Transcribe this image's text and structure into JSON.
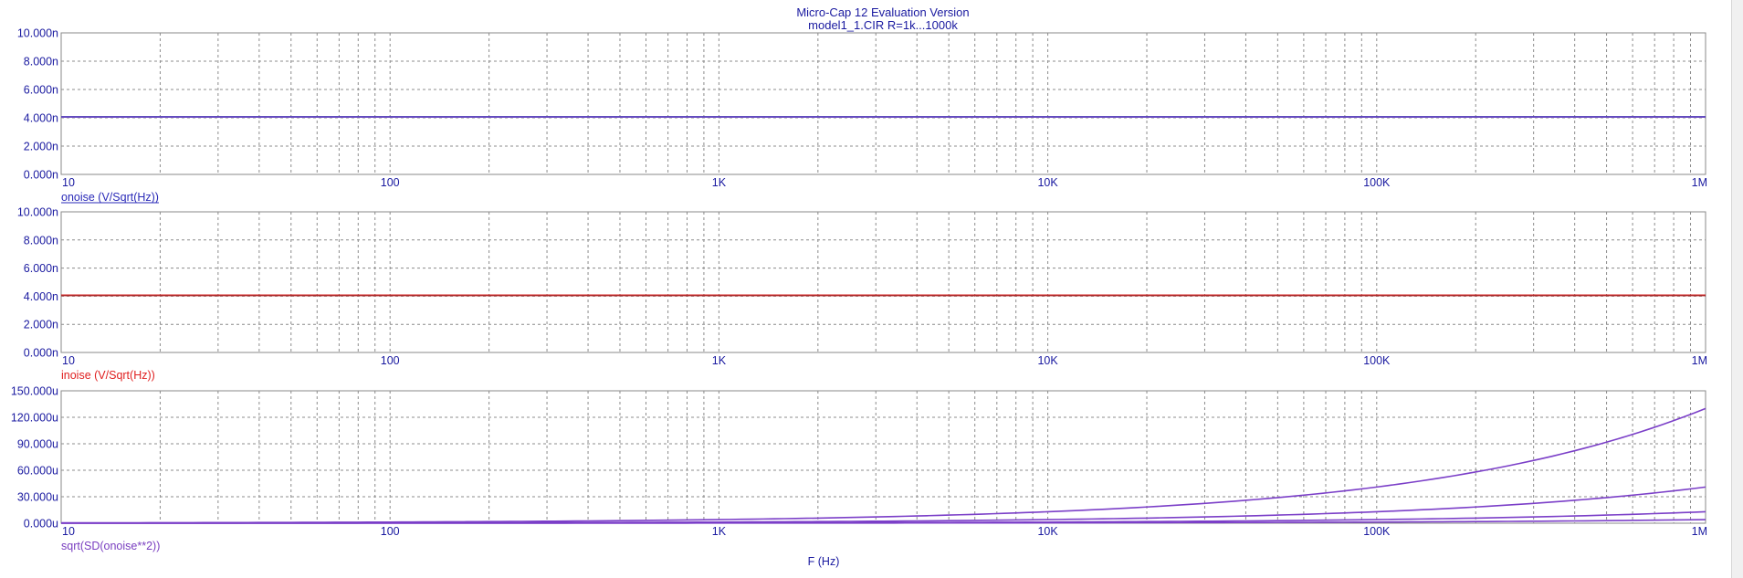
{
  "window": {
    "title": "Micro-Cap 12 Evaluation Version",
    "subtitle": "model1_1.CIR R=1k...1000k"
  },
  "x_axis_label": "F (Hz)",
  "colors": {
    "text": "#1a1aa0",
    "grid": "#8c8c8c",
    "frame": "#8a8a8a"
  },
  "chart_data": [
    {
      "type": "line",
      "x_scale": "log",
      "xlim": [
        10,
        1000000
      ],
      "x_ticks": [
        10,
        100,
        1000,
        10000,
        100000,
        1000000
      ],
      "x_tick_labels": [
        "10",
        "100",
        "1K",
        "10K",
        "100K",
        "1M"
      ],
      "ylim": [
        0,
        10
      ],
      "y_ticks": [
        0,
        2,
        4,
        6,
        8,
        10
      ],
      "y_tick_labels": [
        "0.000n",
        "2.000n",
        "4.000n",
        "6.000n",
        "8.000n",
        "10.000n"
      ],
      "ylabel": "onoise (V/Sqrt(Hz))",
      "label_color": "#2a2ab8",
      "grid": true,
      "series": [
        {
          "color": "#1f1fa8",
          "x": [
            10,
            1000000
          ],
          "y": [
            4.07,
            4.07
          ]
        },
        {
          "color": "#6a4ac0",
          "x": [
            10,
            1000000
          ],
          "y": [
            4.05,
            4.05
          ]
        }
      ]
    },
    {
      "type": "line",
      "x_scale": "log",
      "xlim": [
        10,
        1000000
      ],
      "x_ticks": [
        10,
        100,
        1000,
        10000,
        100000,
        1000000
      ],
      "x_tick_labels": [
        "10",
        "100",
        "1K",
        "10K",
        "100K",
        "1M"
      ],
      "ylim": [
        0,
        10
      ],
      "y_ticks": [
        0,
        2,
        4,
        6,
        8,
        10
      ],
      "y_tick_labels": [
        "0.000n",
        "2.000n",
        "4.000n",
        "6.000n",
        "8.000n",
        "10.000n"
      ],
      "ylabel": "inoise (V/Sqrt(Hz))",
      "label_color": "#e02020",
      "grid": true,
      "series": [
        {
          "color": "#e01818",
          "x": [
            10,
            1000000
          ],
          "y": [
            4.07,
            4.07
          ]
        },
        {
          "color": "#b02828",
          "x": [
            10,
            1000000
          ],
          "y": [
            4.05,
            4.05
          ]
        }
      ]
    },
    {
      "type": "line",
      "x_scale": "log",
      "xlim": [
        10,
        1000000
      ],
      "x_ticks": [
        10,
        100,
        1000,
        10000,
        100000,
        1000000
      ],
      "x_tick_labels": [
        "10",
        "100",
        "1K",
        "10K",
        "100K",
        "1M"
      ],
      "ylim": [
        0,
        150
      ],
      "y_ticks": [
        0,
        30,
        60,
        90,
        120,
        150
      ],
      "y_tick_labels": [
        "0.000u",
        "30.000u",
        "60.000u",
        "90.000u",
        "120.000u",
        "150.000u"
      ],
      "ylabel": "sqrt(SD(onoise**2))",
      "label_color": "#7a3fc0",
      "grid": true,
      "series": [
        {
          "color": "#7b3fc8",
          "x": [
            10,
            100,
            1000,
            10000,
            100000,
            1000000
          ],
          "y": [
            0.13,
            0.4,
            1.3,
            4.1,
            13.0,
            41.0
          ]
        },
        {
          "color": "#7b3fc8",
          "x": [
            10,
            100,
            1000,
            10000,
            100000,
            1000000
          ],
          "y": [
            0.4,
            1.3,
            4.1,
            13.0,
            41.0,
            130.0
          ]
        },
        {
          "color": "#7b3fc8",
          "x": [
            10,
            100,
            1000,
            10000,
            100000,
            1000000
          ],
          "y": [
            0.04,
            0.13,
            0.4,
            1.3,
            4.1,
            13.0
          ]
        },
        {
          "color": "#7b3fc8",
          "x": [
            10,
            100,
            1000,
            10000,
            100000,
            1000000
          ],
          "y": [
            0.01,
            0.04,
            0.13,
            0.4,
            1.3,
            4.1
          ]
        }
      ]
    }
  ]
}
